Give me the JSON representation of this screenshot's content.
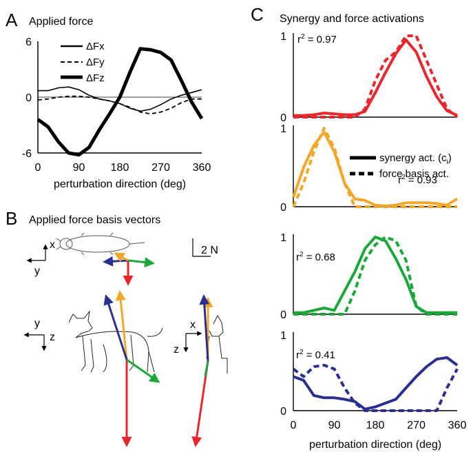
{
  "panelA": {
    "letter": "A",
    "title": "Applied force",
    "xlabel": "perturbation direction (deg)",
    "xticks": [
      "0",
      "90",
      "180",
      "270",
      "360"
    ],
    "yticks": [
      "6",
      "0",
      "-6"
    ],
    "legend": [
      "ΔFx",
      "ΔFy",
      "ΔFz"
    ]
  },
  "panelB": {
    "letter": "B",
    "title": "Applied force basis vectors",
    "scale_label": "2 N",
    "axes_top": {
      "x": "x",
      "y": "y"
    },
    "axes_side": {
      "y": "y",
      "z": "z"
    },
    "axes_front": {
      "x": "x",
      "z": "z"
    },
    "colors": [
      "#e8262b",
      "#f2a72b",
      "#1ba73a",
      "#2b2f8f"
    ]
  },
  "panelC": {
    "letter": "C",
    "title": "Synergy and force activations",
    "xlabel": "perturbation direction (deg)",
    "xticks": [
      "0",
      "90",
      "180",
      "270",
      "360"
    ],
    "legend": {
      "solid": "synergy act. (c",
      "solid_sub": "i",
      "solid_end": ")",
      "dashed": "force basis act."
    },
    "r2_prefix": "r",
    "r2_values": [
      "0.97",
      "0.93",
      "0.68",
      "0.41"
    ]
  },
  "chart_data": [
    {
      "type": "line",
      "title": "Applied force",
      "xlabel": "perturbation direction (deg)",
      "ylabel": "",
      "xlim": [
        0,
        360
      ],
      "ylim": [
        -6,
        6
      ],
      "x": [
        0,
        22.5,
        45,
        67.5,
        90,
        112.5,
        135,
        157.5,
        180,
        202.5,
        225,
        247.5,
        270,
        292.5,
        315,
        337.5,
        360
      ],
      "series": [
        {
          "name": "ΔFx",
          "style": "thin-solid",
          "values": [
            0.7,
            0.7,
            1.0,
            1.1,
            0.8,
            0.2,
            -0.2,
            -0.4,
            -0.7,
            -1.2,
            -1.5,
            -1.3,
            -0.8,
            -0.2,
            0.2,
            0.5,
            0.8
          ]
        },
        {
          "name": "ΔFy",
          "style": "dashed",
          "values": [
            -0.3,
            -0.2,
            0.0,
            0.1,
            0.1,
            0.0,
            -0.2,
            -0.4,
            -0.7,
            -1.1,
            -1.6,
            -1.8,
            -1.6,
            -1.2,
            -0.6,
            -0.2,
            -0.2
          ]
        },
        {
          "name": "ΔFz",
          "style": "thick-solid",
          "values": [
            -2.4,
            -3.2,
            -4.8,
            -6.0,
            -6.2,
            -5.4,
            -3.5,
            -1.8,
            0.0,
            2.7,
            5.2,
            5.1,
            4.8,
            4.0,
            1.8,
            -0.5,
            -2.3
          ]
        }
      ]
    },
    {
      "type": "line",
      "title": "Synergy and force activations",
      "xlabel": "perturbation direction (deg)",
      "ylim": [
        0,
        1
      ],
      "xlim": [
        0,
        360
      ],
      "x": [
        0,
        22.5,
        45,
        67.5,
        90,
        112.5,
        135,
        157.5,
        180,
        202.5,
        225,
        247.5,
        270,
        292.5,
        315,
        337.5,
        360
      ],
      "panels": [
        {
          "r2": "0.97",
          "color": "#e8262b",
          "synergy": [
            0.02,
            0.02,
            0.03,
            0.05,
            0.04,
            0.03,
            0.03,
            0.07,
            0.3,
            0.55,
            0.78,
            0.95,
            0.8,
            0.5,
            0.25,
            0.08,
            0.02
          ],
          "force": [
            0.0,
            0.0,
            0.0,
            0.0,
            0.0,
            0.0,
            0.0,
            0.1,
            0.45,
            0.7,
            0.8,
            1.0,
            1.0,
            0.7,
            0.4,
            0.1,
            0.0
          ]
        },
        {
          "r2": "0.93",
          "color": "#f2a72b",
          "synergy": [
            0.12,
            0.5,
            0.78,
            0.95,
            0.7,
            0.3,
            0.1,
            0.08,
            0.02,
            0.01,
            0.02,
            0.05,
            0.05,
            0.05,
            0.04,
            0.02,
            0.1
          ],
          "force": [
            0.0,
            0.3,
            0.7,
            1.0,
            0.75,
            0.3,
            0.0,
            0.0,
            0.0,
            0.0,
            0.0,
            0.0,
            0.0,
            0.0,
            0.0,
            0.0,
            0.0
          ]
        },
        {
          "r2": "0.68",
          "color": "#1ba73a",
          "synergy": [
            0.02,
            0.02,
            0.05,
            0.08,
            0.05,
            0.3,
            0.55,
            0.85,
            1.0,
            0.95,
            0.72,
            0.45,
            0.1,
            0.02,
            0.02,
            0.02,
            0.02
          ],
          "force": [
            0.0,
            0.0,
            0.0,
            0.0,
            0.0,
            0.0,
            0.3,
            0.7,
            0.9,
            1.0,
            0.95,
            0.7,
            0.1,
            0.0,
            0.0,
            0.0,
            0.0
          ]
        },
        {
          "r2": "0.41",
          "color": "#2b2f8f",
          "synergy": [
            0.45,
            0.4,
            0.2,
            0.17,
            0.17,
            0.15,
            0.12,
            0.02,
            0.05,
            0.1,
            0.15,
            0.3,
            0.45,
            0.58,
            0.68,
            0.7,
            0.6
          ],
          "force": [
            0.55,
            0.45,
            0.58,
            0.6,
            0.55,
            0.3,
            0.1,
            0.0,
            0.0,
            0.0,
            0.0,
            0.0,
            0.0,
            0.0,
            0.0,
            0.3,
            0.55
          ]
        }
      ]
    }
  ]
}
